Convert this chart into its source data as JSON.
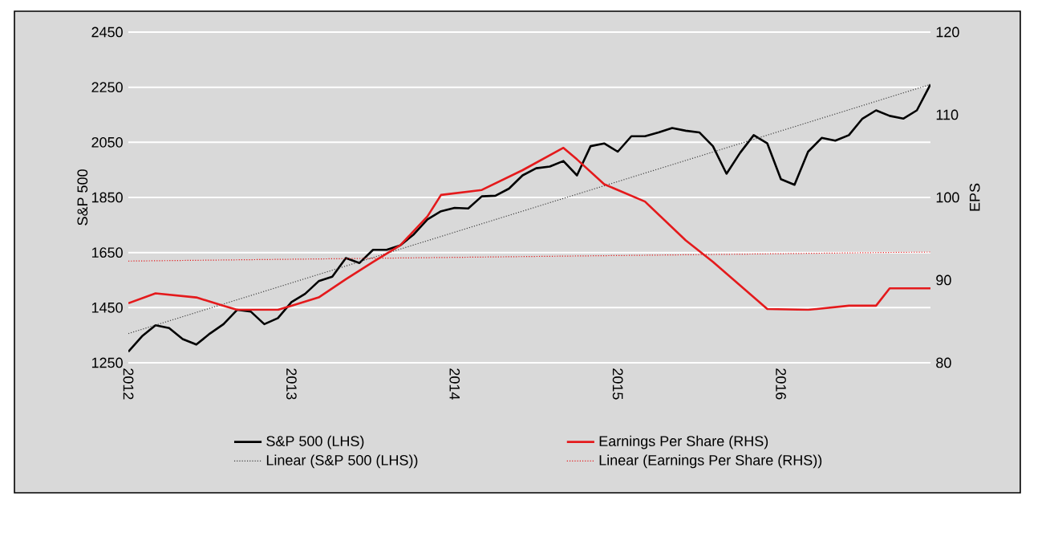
{
  "chart_data": {
    "type": "line",
    "ylabel": "S&P 500",
    "y2label": "EPS",
    "xlim": [
      "2012-01",
      "2016-12"
    ],
    "xticks": [
      "2012",
      "2013",
      "2014",
      "2015",
      "2016"
    ],
    "ylim": [
      1250,
      2450
    ],
    "yticks": [
      1250,
      1450,
      1650,
      1850,
      2050,
      2250,
      2450
    ],
    "y2lim": [
      80,
      120
    ],
    "y2ticks": [
      80,
      90,
      100,
      110,
      120
    ],
    "grid": "y",
    "legend": "bottom",
    "marker": "none",
    "series": [
      {
        "name": "S&P 500 (LHS)",
        "color": "#000000",
        "line_style": "solid",
        "x": [
          "2012-01",
          "2012-02",
          "2012-03",
          "2012-04",
          "2012-05",
          "2012-06",
          "2012-07",
          "2012-08",
          "2012-09",
          "2012-10",
          "2012-11",
          "2012-12",
          "2013-01",
          "2013-02",
          "2013-03",
          "2013-04",
          "2013-05",
          "2013-06",
          "2013-07",
          "2013-08",
          "2013-09",
          "2013-10",
          "2013-11",
          "2013-12",
          "2014-01",
          "2014-02",
          "2014-03",
          "2014-04",
          "2014-05",
          "2014-06",
          "2014-07",
          "2014-08",
          "2014-09",
          "2014-10",
          "2014-11",
          "2014-12",
          "2015-01",
          "2015-02",
          "2015-03",
          "2015-04",
          "2015-05",
          "2015-06",
          "2015-07",
          "2015-08",
          "2015-09",
          "2015-10",
          "2015-11",
          "2015-12",
          "2016-01",
          "2016-02",
          "2016-03",
          "2016-04",
          "2016-05",
          "2016-06",
          "2016-07",
          "2016-08",
          "2016-09",
          "2016-10",
          "2016-11",
          "2016-12"
        ],
        "values": [
          1290,
          1346,
          1386,
          1376,
          1336,
          1316,
          1356,
          1390,
          1442,
          1436,
          1390,
          1412,
          1470,
          1500,
          1546,
          1562,
          1630,
          1612,
          1660,
          1660,
          1676,
          1716,
          1770,
          1800,
          1812,
          1810,
          1854,
          1856,
          1882,
          1930,
          1956,
          1962,
          1982,
          1930,
          2036,
          2046,
          2016,
          2072,
          2072,
          2086,
          2102,
          2092,
          2086,
          2036,
          1936,
          2012,
          2076,
          2046,
          1916,
          1896,
          2016,
          2066,
          2056,
          2076,
          2136,
          2166,
          2146,
          2136,
          2166,
          2260
        ]
      },
      {
        "name": "Earnings Per Share (RHS)",
        "color": "#e41a1c",
        "line_style": "solid",
        "axis": "y2",
        "x": [
          "2012-01",
          "2012-03",
          "2012-06",
          "2012-08",
          "2012-09",
          "2012-12",
          "2013-01",
          "2013-03",
          "2013-05",
          "2013-07",
          "2013-09",
          "2013-11",
          "2013-12",
          "2014-03",
          "2014-06",
          "2014-09",
          "2014-10",
          "2014-12",
          "2015-03",
          "2015-06",
          "2015-08",
          "2015-12",
          "2016-03",
          "2016-06",
          "2016-08",
          "2016-09",
          "2016-12"
        ],
        "values": [
          87.2,
          88.4,
          87.9,
          86.9,
          86.4,
          86.4,
          86.9,
          87.9,
          90.1,
          92.2,
          94.2,
          97.7,
          100.3,
          100.9,
          103.3,
          106,
          104.6,
          101.6,
          99.5,
          94.8,
          92.2,
          86.5,
          86.4,
          86.9,
          86.9,
          89,
          89
        ]
      },
      {
        "name": "Linear (S&P 500 (LHS))",
        "color": "#404040",
        "line_style": "dotted",
        "x": [
          "2012-01",
          "2016-12"
        ],
        "values": [
          1356,
          2260
        ]
      },
      {
        "name": "Linear (Earnings Per Share (RHS))",
        "color": "#e41a1c",
        "line_style": "dotted",
        "axis": "y2",
        "x": [
          "2012-01",
          "2016-12"
        ],
        "values": [
          92.3,
          93.4
        ]
      }
    ]
  }
}
